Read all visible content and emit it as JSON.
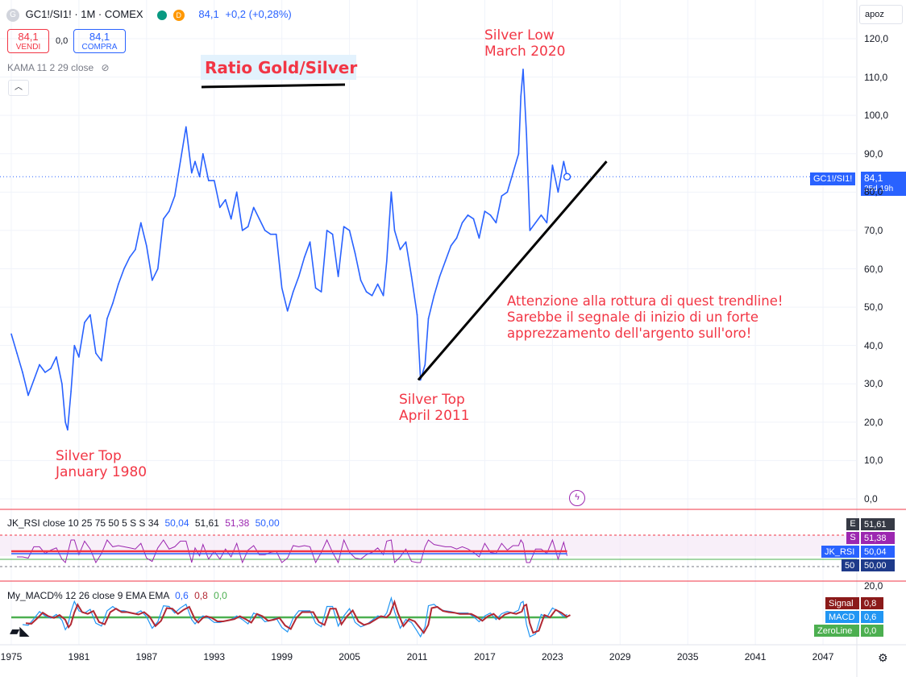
{
  "header": {
    "symbol_icon": "G",
    "symbol_title": "GC1!/SI1! · 1M · COMEX",
    "price": "84,1",
    "change": "+0,2 (+0,28%)",
    "status_badge": "D",
    "sell_price": "84,1",
    "sell_label": "VENDI",
    "spread": "0,0",
    "buy_price": "84,1",
    "buy_label": "COMPRA",
    "indicator_label": "KAMA 11 2 29 close",
    "search_placeholder": "apoz"
  },
  "price_tag": {
    "symbol": "GC1!/SI1!",
    "value": "84,1",
    "countdown": "25d 19h"
  },
  "annotations": {
    "ratio_title": "Ratio Gold/Silver",
    "silver_low_line1": "Silver Low",
    "silver_low_line2": "March 2020",
    "silver_top_2011_line1": "Silver Top",
    "silver_top_2011_line2": "April 2011",
    "silver_top_1980_line1": "Silver Top",
    "silver_top_1980_line2": "January 1980",
    "note_line1": "Attenzione alla rottura di quest trendline!",
    "note_line2": "Sarebbe il segnale di inizio di un forte",
    "note_line3": "apprezzamento dell'argento sull'oro!"
  },
  "rsi_panel": {
    "title": "JK_RSI close 10 25 75 50 5 S S 34",
    "v1": "50,04",
    "v2": "51,61",
    "v3": "51,38",
    "v4": "50,00",
    "tags": [
      {
        "letter": "E",
        "value": "51,61"
      },
      {
        "letter": "S",
        "value": "51,38"
      },
      {
        "letter": "JK_RSI",
        "value": "50,04"
      },
      {
        "letter": "50",
        "value": "50,00"
      }
    ]
  },
  "macd_panel": {
    "title": "My_MACD% 12 26 close 9 EMA EMA",
    "v1": "0,6",
    "v2": "0,8",
    "v3": "0,0",
    "y_label": "20,0",
    "tags": [
      {
        "name": "Signal",
        "value": "0,8"
      },
      {
        "name": "MACD",
        "value": "0,6"
      },
      {
        "name": "ZeroLine",
        "value": "0,0"
      }
    ]
  },
  "colors": {
    "price_line": "#2962ff",
    "annotation": "#f23645",
    "rsi_purple": "#9c27b0",
    "macd_red": "#b22833",
    "macd_blue": "#2196f3",
    "zero_green": "#4caf50"
  },
  "chart_data": {
    "type": "line",
    "title": "",
    "xlabel": "",
    "ylabel": "",
    "x_ticks": [
      "1975",
      "1981",
      "1987",
      "1993",
      "1999",
      "2005",
      "2011",
      "2017",
      "2023",
      "2029",
      "2035",
      "2041",
      "2047"
    ],
    "y_ticks": [
      "0,0",
      "10,0",
      "20,0",
      "30,0",
      "40,0",
      "50,0",
      "60,0",
      "70,0",
      "80,0",
      "90,0",
      "100,0",
      "110,0",
      "120,0"
    ],
    "ylim": [
      0,
      125
    ],
    "xlim": [
      1975,
      2050
    ],
    "series": [
      {
        "x": [
          1975.0,
          1975.5,
          1976.0,
          1976.5,
          1977.0,
          1977.5,
          1978.0,
          1978.5,
          1979.0,
          1979.5,
          1979.8,
          1980.0,
          1980.3,
          1980.6,
          1981.0,
          1981.5,
          1982.0,
          1982.5,
          1983.0,
          1983.5,
          1984.0,
          1984.5,
          1985.0,
          1985.5,
          1986.0,
          1986.5,
          1987.0,
          1987.5,
          1988.0,
          1988.5,
          1989.0,
          1989.5,
          1990.0,
          1990.5,
          1991.0,
          1991.3,
          1991.7,
          1992.0,
          1992.5,
          1993.0,
          1993.5,
          1994.0,
          1994.5,
          1995.0,
          1995.5,
          1996.0,
          1996.5,
          1997.0,
          1997.5,
          1998.0,
          1998.5,
          1999.0,
          1999.5,
          2000.0,
          2000.5,
          2001.0,
          2001.5,
          2002.0,
          2002.5,
          2003.0,
          2003.5,
          2004.0,
          2004.5,
          2005.0,
          2005.5,
          2006.0,
          2006.5,
          2007.0,
          2007.5,
          2008.0,
          2008.3,
          2008.7,
          2009.0,
          2009.5,
          2010.0,
          2010.5,
          2011.0,
          2011.3,
          2011.7,
          2012.0,
          2012.5,
          2013.0,
          2013.5,
          2014.0,
          2014.5,
          2015.0,
          2015.5,
          2016.0,
          2016.5,
          2017.0,
          2017.5,
          2018.0,
          2018.5,
          2019.0,
          2019.5,
          2020.0,
          2020.2,
          2020.4,
          2020.7,
          2021.0,
          2021.5,
          2022.0,
          2022.5,
          2023.0,
          2023.5,
          2024.0,
          2024.3
        ],
        "values": [
          43,
          38,
          33,
          27,
          31,
          35,
          33,
          34,
          37,
          30,
          20,
          18,
          28,
          40,
          37,
          46,
          48,
          38,
          36,
          47,
          51,
          56,
          60,
          63,
          65,
          72,
          66,
          57,
          60,
          73,
          75,
          79,
          88,
          97,
          85,
          88,
          84,
          90,
          83,
          83,
          76,
          78,
          73,
          80,
          70,
          71,
          76,
          73,
          70,
          69,
          69,
          55,
          49,
          54,
          58,
          63,
          67,
          55,
          54,
          70,
          69,
          58,
          71,
          70,
          64,
          57,
          54,
          53,
          56,
          53,
          62,
          80,
          70,
          65,
          67,
          58,
          48,
          31,
          35,
          47,
          53,
          58,
          62,
          66,
          68,
          72,
          74,
          73,
          68,
          75,
          74,
          72,
          79,
          80,
          85,
          90,
          105,
          112,
          95,
          70,
          72,
          74,
          72,
          87,
          80,
          88,
          84
        ]
      }
    ]
  }
}
